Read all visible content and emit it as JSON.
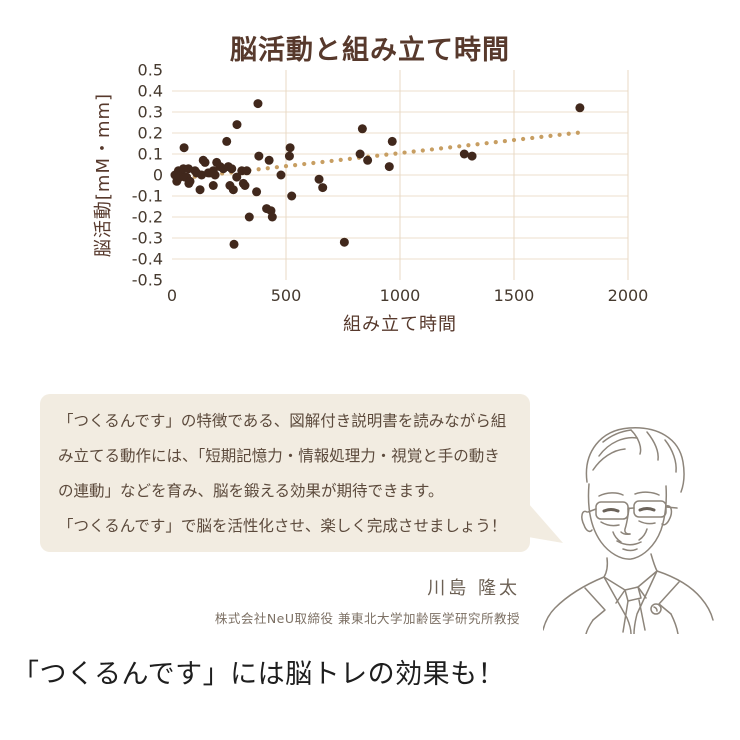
{
  "chart_data": {
    "type": "scatter",
    "title": "脳活動と組み立て時間",
    "xlabel": "組み立て時間",
    "ylabel": "脳活動[mM・mm]",
    "xlim": [
      0,
      2000
    ],
    "ylim": [
      -0.5,
      0.5
    ],
    "x_tick_labels": [
      "0",
      "500",
      "1000",
      "1500",
      "2000"
    ],
    "y_tick_labels": [
      "0.5",
      "0.4",
      "0.3",
      "0.2",
      "0.1",
      "0",
      "-0.1",
      "-0.2",
      "-0.3",
      "-0.4",
      "-0.5"
    ],
    "grid": true,
    "legend_position": "none",
    "colors": {
      "points": "#41281c",
      "trend": "#c79e62",
      "grid_h": "#ecdfcd",
      "grid_v": "#e8d9c4",
      "ticks": "#463a2f"
    },
    "points": [
      [
        13,
        0.0
      ],
      [
        21,
        -0.03
      ],
      [
        28,
        0.02
      ],
      [
        35,
        -0.01
      ],
      [
        42,
        0.02
      ],
      [
        50,
        0.03
      ],
      [
        53,
        0.13
      ],
      [
        57,
        -0.01
      ],
      [
        64,
        -0.01
      ],
      [
        72,
        0.03
      ],
      [
        74,
        -0.04
      ],
      [
        79,
        -0.03
      ],
      [
        101,
        0.02
      ],
      [
        108,
        0.01
      ],
      [
        123,
        -0.07
      ],
      [
        130,
        0.0
      ],
      [
        137,
        0.07
      ],
      [
        145,
        0.06
      ],
      [
        159,
        0.01
      ],
      [
        167,
        0.01
      ],
      [
        181,
        0.02
      ],
      [
        181,
        -0.05
      ],
      [
        189,
        0.0
      ],
      [
        196,
        0.06
      ],
      [
        211,
        0.04
      ],
      [
        225,
        0.03
      ],
      [
        240,
        0.16
      ],
      [
        247,
        0.04
      ],
      [
        254,
        -0.05
      ],
      [
        262,
        0.03
      ],
      [
        269,
        -0.07
      ],
      [
        272,
        -0.33
      ],
      [
        284,
        -0.01
      ],
      [
        285,
        0.24
      ],
      [
        306,
        0.02
      ],
      [
        313,
        -0.04
      ],
      [
        320,
        -0.05
      ],
      [
        328,
        0.02
      ],
      [
        339,
        -0.2
      ],
      [
        371,
        -0.08
      ],
      [
        377,
        0.34
      ],
      [
        381,
        0.09
      ],
      [
        415,
        -0.16
      ],
      [
        426,
        0.07
      ],
      [
        434,
        -0.17
      ],
      [
        440,
        -0.2
      ],
      [
        478,
        0.0
      ],
      [
        515,
        0.09
      ],
      [
        518,
        0.13
      ],
      [
        525,
        -0.1
      ],
      [
        645,
        -0.02
      ],
      [
        661,
        -0.06
      ],
      [
        756,
        -0.32
      ],
      [
        825,
        0.1
      ],
      [
        835,
        0.22
      ],
      [
        858,
        0.07
      ],
      [
        953,
        0.04
      ],
      [
        966,
        0.16
      ],
      [
        1282,
        0.1
      ],
      [
        1316,
        0.09
      ],
      [
        1789,
        0.32
      ]
    ],
    "trendline": {
      "style": "dotted",
      "x_start": 0,
      "y_start": -0.02,
      "x_end": 1810,
      "y_end": 0.205,
      "dot_spacing": 40
    }
  },
  "speech_bubble": {
    "bg_color": "#f2ece1",
    "text_color": "#5c4a3c",
    "lines": [
      "「つくるんです」の特徴である、図解付き説明書を読みながら組",
      "み立てる動作には、「短期記憶力・情報処理力・視覚と手の動き",
      "の連動」などを育み、脳を鍛える効果が期待できます。",
      "「つくるんです」で脳を活性化させ、楽しく完成させましょう！"
    ]
  },
  "person": {
    "name": "川島 隆太",
    "affiliation": "株式会社NeU取締役 兼東北大学加齢医学研究所教授"
  },
  "caption": {
    "text": "「つくるんです」には脳トレの効果も！"
  }
}
